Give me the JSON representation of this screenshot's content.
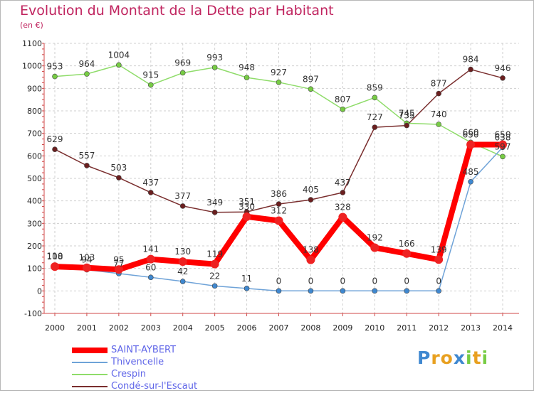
{
  "title": "Evolution du Montant de la Dette par Habitant",
  "unit": "(en €)",
  "brand": "Proxiti",
  "chart_data": {
    "type": "line",
    "title": "Evolution du Montant de la Dette par Habitant",
    "ylabel": "(en €)",
    "ylim": [
      -100,
      1100
    ],
    "yticks": [
      -100,
      0,
      100,
      200,
      300,
      400,
      500,
      600,
      700,
      800,
      900,
      1000,
      1100
    ],
    "grid": true,
    "legend": "bottom-left",
    "x": [
      "2000",
      "2001",
      "2002",
      "2003",
      "2004",
      "2005",
      "2006",
      "2007",
      "2008",
      "2009",
      "2010",
      "2011",
      "2012",
      "2013",
      "2014"
    ],
    "series": [
      {
        "name": "SAINT-AYBERT",
        "color": "#ff0000",
        "marker": "#ee2222",
        "values": [
          108,
          103,
          95,
          141,
          130,
          119,
          330,
          312,
          138,
          328,
          192,
          166,
          139,
          650,
          650
        ]
      },
      {
        "name": "Thivencelle",
        "color": "#6fa3d8",
        "marker": "#3f88d0",
        "values": [
          110,
          94,
          77,
          60,
          42,
          22,
          11,
          0,
          0,
          0,
          0,
          0,
          0,
          485,
          638
        ]
      },
      {
        "name": "Crespin",
        "color": "#8fdc6a",
        "marker": "#77cc44",
        "values": [
          953,
          964,
          1004,
          915,
          969,
          993,
          948,
          927,
          897,
          807,
          859,
          745,
          740,
          660,
          597
        ]
      },
      {
        "name": "Condé-sur-l'Escaut",
        "color": "#7a2e2e",
        "marker": "#6b1f1f",
        "values": [
          629,
          557,
          503,
          437,
          377,
          349,
          351,
          386,
          405,
          437,
          727,
          735,
          877,
          984,
          946
        ]
      }
    ]
  }
}
